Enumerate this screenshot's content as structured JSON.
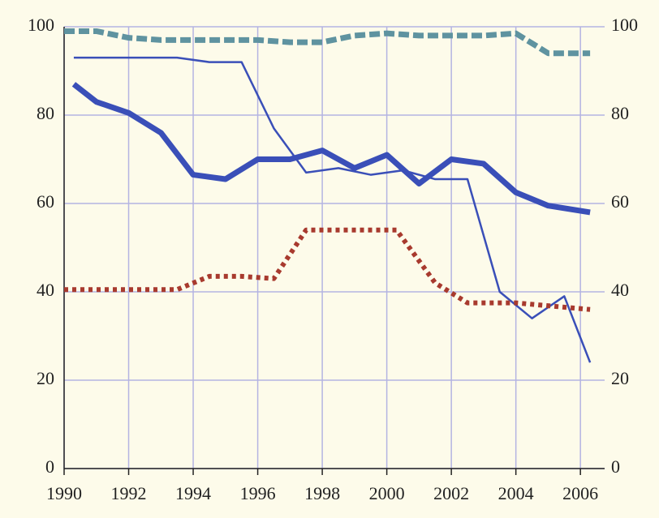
{
  "chart_data": {
    "type": "line",
    "xlim": [
      1990,
      2006.75
    ],
    "xticks": [
      1990,
      1992,
      1994,
      1996,
      1998,
      2000,
      2002,
      2004,
      2006
    ],
    "ylim": [
      0,
      100
    ],
    "yticks": [
      0,
      20,
      40,
      60,
      80,
      100
    ],
    "y2lim": [
      0,
      100
    ],
    "y2ticks": [
      0,
      20,
      40,
      60,
      80,
      100
    ],
    "grid": true,
    "series": [
      {
        "color": "#5f93a0",
        "style": "dashed",
        "x": [
          1990,
          1991,
          1992,
          1993,
          1994,
          1995,
          1996,
          1997,
          1998,
          1999,
          2000,
          2001,
          2002,
          2003,
          2004,
          2005,
          2006.3
        ],
        "values": [
          99,
          99,
          97.5,
          97,
          97,
          97,
          97,
          96.5,
          96.5,
          98,
          98.5,
          98,
          98,
          98,
          98.5,
          94,
          94
        ]
      },
      {
        "color": "#3a4fb8",
        "style": "thick",
        "x": [
          1990.3,
          1991,
          1992,
          1993,
          1994,
          1995,
          1996,
          1997,
          1998,
          1999,
          2000,
          2001,
          2002,
          2003,
          2004,
          2005,
          2006.3
        ],
        "values": [
          87,
          83,
          80.5,
          76,
          66.5,
          65.5,
          70,
          70,
          72,
          68,
          71,
          64.5,
          70,
          69,
          62.5,
          59.5,
          58
        ]
      },
      {
        "color": "#3a4fb8",
        "style": "solid",
        "x": [
          1990.3,
          1993.5,
          1994.5,
          1995.5,
          1996.5,
          1997.5,
          1998.5,
          1999.5,
          2000.5,
          2001.5,
          2002.5,
          2003.5,
          2004.5,
          2005.5,
          2006.3
        ],
        "values": [
          93,
          93,
          92,
          92,
          77,
          67,
          68,
          66.5,
          67.5,
          65.5,
          65.5,
          40,
          34,
          39,
          24
        ]
      },
      {
        "color": "#a83a2e",
        "style": "dotted",
        "x": [
          1990,
          1993.5,
          1994.5,
          1995.5,
          1996.5,
          1997.5,
          2000.3,
          2001.5,
          2002.5,
          2004,
          2006.3
        ],
        "values": [
          40.5,
          40.5,
          43.5,
          43.5,
          43,
          54,
          54,
          42,
          37.5,
          37.5,
          36
        ]
      }
    ]
  }
}
